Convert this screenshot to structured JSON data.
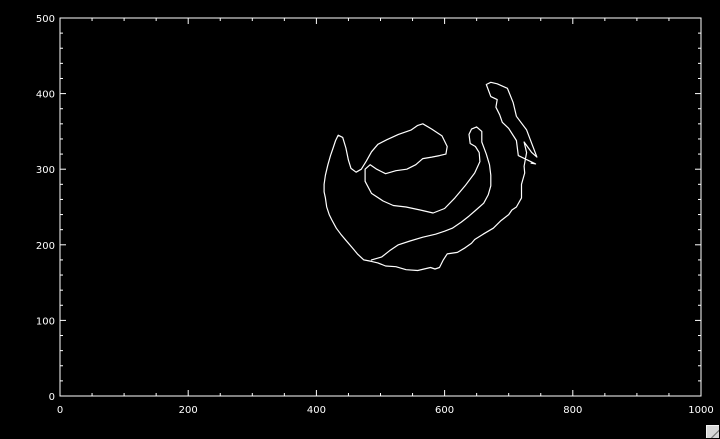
{
  "chart_data": {
    "type": "line",
    "title": "",
    "xlabel": "",
    "ylabel": "",
    "xlim": [
      0,
      1000
    ],
    "ylim": [
      0,
      500
    ],
    "x_ticks": [
      "0",
      "200",
      "400",
      "600",
      "800",
      "1000"
    ],
    "y_ticks": [
      "0",
      "100",
      "200",
      "300",
      "400",
      "500"
    ],
    "grid": false,
    "colors": {
      "background": "#000000",
      "axes": "#ffffff",
      "series": "#ffffff"
    },
    "series": [
      {
        "values": [
          [
            735,
            308
          ],
          [
            742,
            307
          ],
          [
            715,
            318
          ],
          [
            712,
            338
          ],
          [
            700,
            354
          ],
          [
            690,
            362
          ],
          [
            686,
            372
          ],
          [
            680,
            382
          ],
          [
            682,
            392
          ],
          [
            672,
            396
          ],
          [
            665,
            412
          ],
          [
            672,
            415
          ],
          [
            682,
            413
          ],
          [
            698,
            407
          ],
          [
            707,
            388
          ],
          [
            712,
            370
          ],
          [
            728,
            352
          ],
          [
            744,
            316
          ],
          [
            736,
            322
          ],
          [
            724,
            336
          ],
          [
            728,
            322
          ],
          [
            724,
            304
          ],
          [
            725,
            295
          ],
          [
            720,
            280
          ],
          [
            720,
            262
          ],
          [
            712,
            250
          ],
          [
            705,
            246
          ],
          [
            700,
            240
          ],
          [
            688,
            232
          ],
          [
            676,
            222
          ],
          [
            660,
            214
          ],
          [
            647,
            207
          ],
          [
            642,
            202
          ],
          [
            632,
            196
          ],
          [
            620,
            190
          ],
          [
            604,
            188
          ],
          [
            598,
            180
          ],
          [
            592,
            170
          ],
          [
            585,
            168
          ],
          [
            578,
            170
          ],
          [
            568,
            168
          ],
          [
            558,
            166
          ],
          [
            540,
            167
          ],
          [
            524,
            171
          ],
          [
            508,
            172
          ],
          [
            496,
            176
          ],
          [
            486,
            178
          ],
          [
            474,
            180
          ],
          [
            464,
            188
          ],
          [
            456,
            196
          ],
          [
            446,
            206
          ],
          [
            438,
            214
          ],
          [
            431,
            222
          ],
          [
            424,
            233
          ],
          [
            420,
            240
          ],
          [
            416,
            250
          ],
          [
            414,
            262
          ],
          [
            412,
            270
          ],
          [
            412,
            280
          ],
          [
            414,
            292
          ],
          [
            418,
            306
          ],
          [
            422,
            318
          ],
          [
            426,
            328
          ],
          [
            430,
            338
          ],
          [
            434,
            345
          ],
          [
            441,
            342
          ],
          [
            446,
            328
          ],
          [
            450,
            312
          ],
          [
            454,
            301
          ],
          [
            462,
            296
          ],
          [
            470,
            300
          ],
          [
            478,
            311
          ],
          [
            486,
            323
          ],
          [
            496,
            333
          ],
          [
            510,
            339
          ],
          [
            528,
            346
          ],
          [
            548,
            352
          ],
          [
            558,
            358
          ],
          [
            566,
            360
          ],
          [
            580,
            353
          ],
          [
            596,
            344
          ],
          [
            604,
            330
          ],
          [
            602,
            320
          ],
          [
            592,
            318
          ],
          [
            580,
            316
          ],
          [
            566,
            314
          ],
          [
            555,
            306
          ],
          [
            541,
            300
          ],
          [
            524,
            298
          ],
          [
            508,
            294
          ],
          [
            494,
            300
          ],
          [
            484,
            306
          ],
          [
            476,
            300
          ],
          [
            476,
            284
          ],
          [
            486,
            268
          ],
          [
            504,
            258
          ],
          [
            520,
            252
          ],
          [
            540,
            250
          ],
          [
            562,
            246
          ],
          [
            582,
            242
          ],
          [
            600,
            248
          ],
          [
            616,
            262
          ],
          [
            632,
            278
          ],
          [
            647,
            295
          ],
          [
            655,
            310
          ],
          [
            654,
            322
          ],
          [
            648,
            330
          ],
          [
            640,
            334
          ],
          [
            638,
            346
          ],
          [
            642,
            353
          ],
          [
            650,
            356
          ],
          [
            658,
            350
          ],
          [
            658,
            336
          ],
          [
            665,
            320
          ],
          [
            670,
            306
          ],
          [
            672,
            292
          ],
          [
            672,
            278
          ],
          [
            668,
            266
          ],
          [
            661,
            255
          ],
          [
            649,
            246
          ],
          [
            638,
            238
          ],
          [
            626,
            230
          ],
          [
            612,
            222
          ],
          [
            600,
            218
          ],
          [
            586,
            214
          ],
          [
            566,
            210
          ],
          [
            546,
            205
          ],
          [
            528,
            200
          ],
          [
            514,
            192
          ],
          [
            502,
            184
          ],
          [
            486,
            180
          ]
        ]
      }
    ]
  },
  "window": {
    "resize_grip_icon": "resize-grip-icon"
  }
}
